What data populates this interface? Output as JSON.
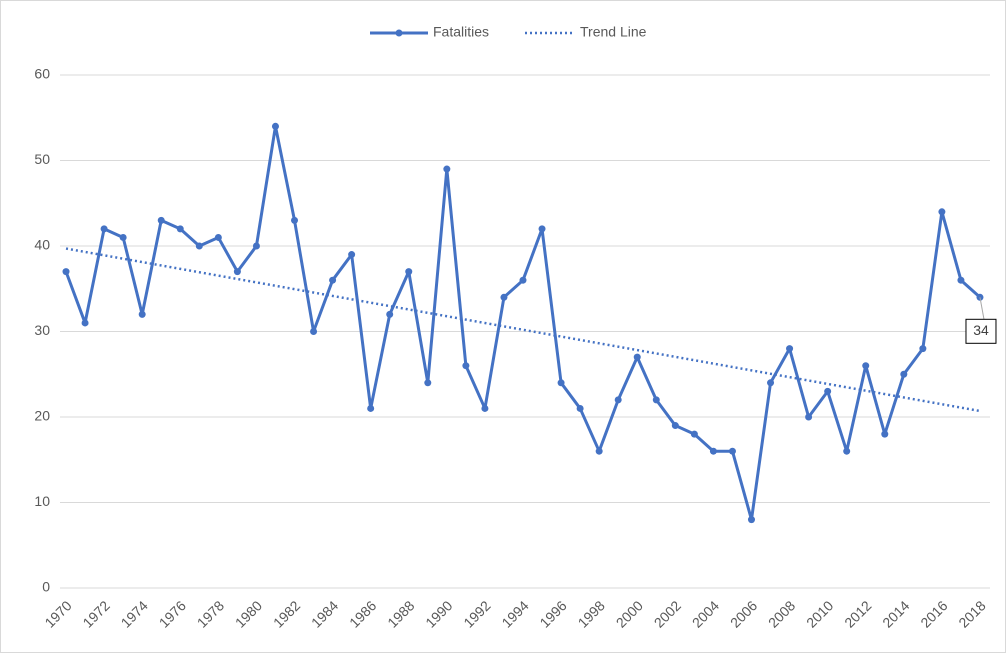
{
  "chart_data": {
    "type": "line",
    "categories": [
      "1970",
      null,
      "1972",
      null,
      "1974",
      null,
      "1976",
      null,
      "1978",
      null,
      "1980",
      null,
      "1982",
      null,
      "1984",
      null,
      "1986",
      null,
      "1988",
      null,
      "1990",
      null,
      "1992",
      null,
      "1994",
      null,
      "1996",
      null,
      "1998",
      null,
      "2000",
      null,
      "2002",
      null,
      "2004",
      null,
      "2006",
      null,
      "2008",
      null,
      "2010",
      null,
      "2012",
      null,
      "2014",
      null,
      "2016",
      null,
      "2018"
    ],
    "series": [
      {
        "name": "Fatalities",
        "color": "#4472c4",
        "values": [
          37,
          31,
          42,
          41,
          32,
          43,
          42,
          40,
          41,
          37,
          40,
          54,
          43,
          30,
          36,
          39,
          21,
          32,
          37,
          24,
          49,
          26,
          21,
          34,
          36,
          42,
          24,
          21,
          16,
          22,
          27,
          22,
          19,
          18,
          16,
          16,
          8,
          24,
          28,
          20,
          23,
          16,
          26,
          18,
          25,
          28,
          44,
          36,
          34
        ]
      },
      {
        "name": "Trend Line",
        "color": "#4472c4",
        "x": [
          1970,
          2018
        ],
        "values": [
          39.7,
          20.7
        ]
      }
    ],
    "ylim": [
      0,
      60
    ],
    "yticks": [
      0,
      10,
      20,
      30,
      40,
      50,
      60
    ],
    "grid": true,
    "legend": "top"
  }
}
